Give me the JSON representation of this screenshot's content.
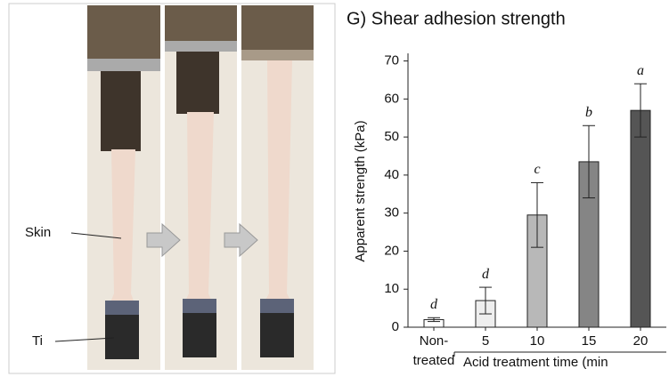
{
  "photo": {
    "labels": [
      "Skin",
      "Ti"
    ]
  },
  "chart_data": {
    "type": "bar",
    "title": "G) Shear adhesion strength",
    "y_label": "Apparent strength (kPa)",
    "x_group_label": "Acid treatment time (min",
    "categories": [
      "Non-treated",
      "5",
      "10",
      "15",
      "20"
    ],
    "values": [
      2,
      7,
      29.5,
      43.5,
      57
    ],
    "errors": [
      0.5,
      3.5,
      8.5,
      9.5,
      7
    ],
    "annotations": [
      "d",
      "d",
      "c",
      "b",
      "a"
    ],
    "colors": [
      "#ffffff",
      "#eeeeee",
      "#b8b8b8",
      "#858585",
      "#555555"
    ],
    "ylim": [
      0,
      72
    ],
    "yticks": [
      0,
      10,
      20,
      30,
      40,
      50,
      60,
      70
    ],
    "grid": false
  }
}
